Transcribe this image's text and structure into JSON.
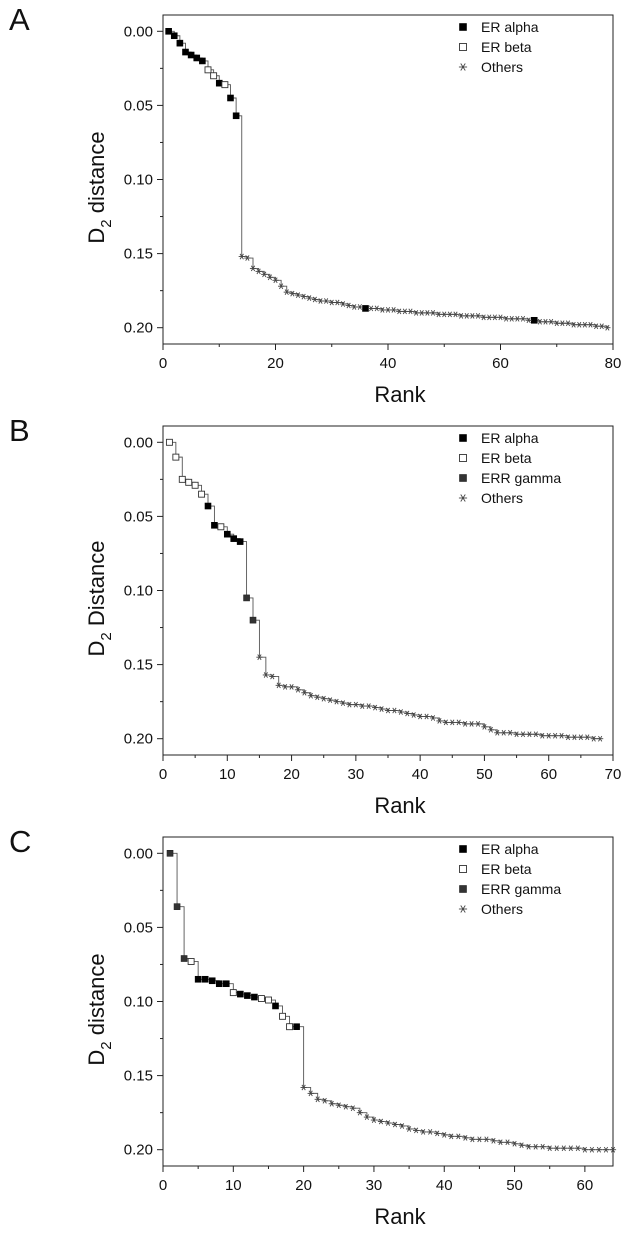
{
  "chart_data": [
    {
      "panel_label": "A",
      "type": "scatter",
      "xlabel": "Rank",
      "ylabel_main": "D",
      "ylabel_sub": "2",
      "ylabel_rest": " distance",
      "xlim": [
        0,
        80
      ],
      "ylim": [
        0.0,
        0.2
      ],
      "y_inverted": true,
      "xticks": [
        0,
        20,
        40,
        60,
        80
      ],
      "yticks": [
        0.0,
        0.05,
        0.1,
        0.15,
        0.2
      ],
      "ytick_labels": [
        "0.00",
        "0.05",
        "0.10",
        "0.15",
        "0.20"
      ],
      "legend_position": "top-right",
      "series": [
        {
          "name": "ER alpha",
          "marker": "filled-square",
          "x": [
            1,
            2,
            3,
            4,
            5,
            6,
            7,
            10,
            12,
            13,
            36,
            66
          ],
          "y": [
            0.0,
            0.003,
            0.008,
            0.014,
            0.016,
            0.018,
            0.02,
            0.035,
            0.045,
            0.057,
            0.187,
            0.195
          ]
        },
        {
          "name": "ER beta",
          "marker": "open-square",
          "x": [
            8,
            9,
            11
          ],
          "y": [
            0.026,
            0.03,
            0.036
          ]
        },
        {
          "name": "Others",
          "marker": "star",
          "x": [
            14,
            15,
            16,
            17,
            18,
            19,
            20,
            21,
            22,
            23,
            24,
            25,
            26,
            27,
            28,
            29,
            30,
            31,
            32,
            33,
            34,
            35,
            37,
            38,
            39,
            40,
            41,
            42,
            43,
            44,
            45,
            46,
            47,
            48,
            49,
            50,
            51,
            52,
            53,
            54,
            55,
            56,
            57,
            58,
            59,
            60,
            61,
            62,
            63,
            64,
            65,
            67,
            68,
            69,
            70,
            71,
            72,
            73,
            74,
            75,
            76,
            77,
            78,
            79
          ],
          "y": [
            0.152,
            0.153,
            0.16,
            0.162,
            0.164,
            0.166,
            0.168,
            0.172,
            0.176,
            0.177,
            0.178,
            0.179,
            0.18,
            0.181,
            0.182,
            0.182,
            0.183,
            0.183,
            0.184,
            0.185,
            0.186,
            0.186,
            0.187,
            0.187,
            0.188,
            0.188,
            0.188,
            0.189,
            0.189,
            0.189,
            0.19,
            0.19,
            0.19,
            0.19,
            0.191,
            0.191,
            0.191,
            0.191,
            0.192,
            0.192,
            0.192,
            0.192,
            0.193,
            0.193,
            0.193,
            0.193,
            0.194,
            0.194,
            0.194,
            0.194,
            0.195,
            0.196,
            0.196,
            0.196,
            0.197,
            0.197,
            0.197,
            0.198,
            0.198,
            0.198,
            0.198,
            0.199,
            0.199,
            0.2
          ]
        }
      ]
    },
    {
      "panel_label": "B",
      "type": "scatter",
      "xlabel": "Rank",
      "ylabel_main": "D",
      "ylabel_sub": "2",
      "ylabel_rest": " Distance",
      "xlim": [
        0,
        70
      ],
      "ylim": [
        0.0,
        0.2
      ],
      "y_inverted": true,
      "xticks": [
        0,
        10,
        20,
        30,
        40,
        50,
        60,
        70
      ],
      "yticks": [
        0.0,
        0.05,
        0.1,
        0.15,
        0.2
      ],
      "ytick_labels": [
        "0.00",
        "0.05",
        "0.10",
        "0.15",
        "0.20"
      ],
      "legend_position": "top-right",
      "series": [
        {
          "name": "ER alpha",
          "marker": "filled-square",
          "x": [
            7,
            8,
            10,
            11,
            12
          ],
          "y": [
            0.043,
            0.056,
            0.062,
            0.065,
            0.067
          ]
        },
        {
          "name": "ER beta",
          "marker": "open-square",
          "x": [
            1,
            2,
            3,
            4,
            5,
            6,
            9
          ],
          "y": [
            0.0,
            0.01,
            0.025,
            0.027,
            0.029,
            0.035,
            0.057
          ]
        },
        {
          "name": "ERR gamma",
          "marker": "dark-square",
          "x": [
            13,
            14
          ],
          "y": [
            0.105,
            0.12
          ]
        },
        {
          "name": "Others",
          "marker": "star",
          "x": [
            15,
            16,
            17,
            18,
            19,
            20,
            21,
            22,
            23,
            24,
            25,
            26,
            27,
            28,
            29,
            30,
            31,
            32,
            33,
            34,
            35,
            36,
            37,
            38,
            39,
            40,
            41,
            42,
            43,
            44,
            45,
            46,
            47,
            48,
            49,
            50,
            51,
            52,
            53,
            54,
            55,
            56,
            57,
            58,
            59,
            60,
            61,
            62,
            63,
            64,
            65,
            66,
            67,
            68
          ],
          "y": [
            0.145,
            0.157,
            0.158,
            0.164,
            0.165,
            0.165,
            0.167,
            0.169,
            0.171,
            0.172,
            0.173,
            0.174,
            0.175,
            0.176,
            0.177,
            0.177,
            0.178,
            0.178,
            0.179,
            0.18,
            0.181,
            0.181,
            0.182,
            0.183,
            0.184,
            0.185,
            0.185,
            0.186,
            0.188,
            0.189,
            0.189,
            0.189,
            0.19,
            0.19,
            0.19,
            0.192,
            0.194,
            0.196,
            0.196,
            0.196,
            0.197,
            0.197,
            0.197,
            0.197,
            0.198,
            0.198,
            0.198,
            0.198,
            0.199,
            0.199,
            0.199,
            0.199,
            0.2,
            0.2
          ]
        }
      ]
    },
    {
      "panel_label": "C",
      "type": "scatter",
      "xlabel": "Rank",
      "ylabel_main": "D",
      "ylabel_sub": "2",
      "ylabel_rest": " distance",
      "xlim": [
        0,
        64
      ],
      "ylim": [
        0.0,
        0.2
      ],
      "y_inverted": true,
      "xticks": [
        0,
        10,
        20,
        30,
        40,
        50,
        60
      ],
      "yticks": [
        0.0,
        0.05,
        0.1,
        0.15,
        0.2
      ],
      "ytick_labels": [
        "0.00",
        "0.05",
        "0.10",
        "0.15",
        "0.20"
      ],
      "legend_position": "top-right",
      "series": [
        {
          "name": "ER alpha",
          "marker": "filled-square",
          "x": [
            5,
            6,
            7,
            8,
            9,
            11,
            12,
            13,
            16,
            19
          ],
          "y": [
            0.085,
            0.085,
            0.086,
            0.088,
            0.088,
            0.095,
            0.096,
            0.097,
            0.103,
            0.117
          ]
        },
        {
          "name": "ER beta",
          "marker": "open-square",
          "x": [
            4,
            10,
            14,
            15,
            17,
            18
          ],
          "y": [
            0.073,
            0.094,
            0.098,
            0.099,
            0.11,
            0.117
          ]
        },
        {
          "name": "ERR gamma",
          "marker": "dark-square",
          "x": [
            1,
            2,
            3
          ],
          "y": [
            0.0,
            0.036,
            0.071
          ]
        },
        {
          "name": "Others",
          "marker": "star",
          "x": [
            20,
            21,
            22,
            23,
            24,
            25,
            26,
            27,
            28,
            29,
            30,
            31,
            32,
            33,
            34,
            35,
            36,
            37,
            38,
            39,
            40,
            41,
            42,
            43,
            44,
            45,
            46,
            47,
            48,
            49,
            50,
            51,
            52,
            53,
            54,
            55,
            56,
            57,
            58,
            59,
            60,
            61,
            62,
            63,
            64
          ],
          "y": [
            0.158,
            0.162,
            0.166,
            0.167,
            0.169,
            0.17,
            0.171,
            0.172,
            0.175,
            0.178,
            0.18,
            0.181,
            0.182,
            0.183,
            0.184,
            0.186,
            0.187,
            0.188,
            0.188,
            0.189,
            0.19,
            0.191,
            0.191,
            0.192,
            0.193,
            0.193,
            0.193,
            0.194,
            0.195,
            0.195,
            0.196,
            0.197,
            0.198,
            0.198,
            0.198,
            0.199,
            0.199,
            0.199,
            0.199,
            0.199,
            0.2,
            0.2,
            0.2,
            0.2,
            0.2
          ]
        }
      ]
    }
  ]
}
